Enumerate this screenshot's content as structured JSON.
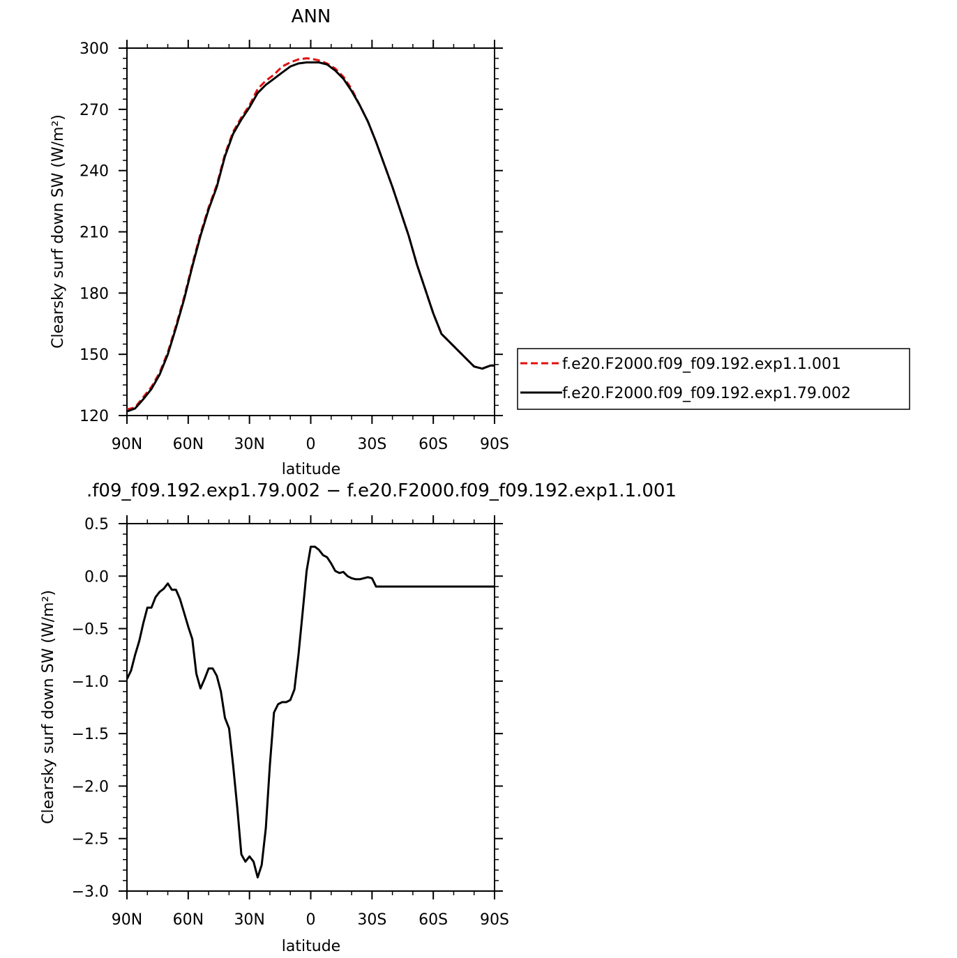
{
  "chart_data": [
    {
      "type": "line",
      "title": "ANN",
      "xlabel": "latitude",
      "ylabel": "Clearsky surf down SW (W/m²)",
      "xlim": [
        90,
        -90
      ],
      "ylim": [
        120,
        300
      ],
      "x_ticks": [
        90,
        60,
        30,
        0,
        -30,
        -60,
        -90
      ],
      "x_tick_labels": [
        "90N",
        "60N",
        "30N",
        "0",
        "30S",
        "60S",
        "90S"
      ],
      "y_ticks": [
        120,
        150,
        180,
        210,
        240,
        270,
        300
      ],
      "y_tick_labels": [
        "120",
        "150",
        "180",
        "210",
        "240",
        "270",
        "300"
      ],
      "legend_position": "right",
      "grid": false,
      "series": [
        {
          "name": "f.e20.F2000.f09_f09.192.exp1.1.001",
          "color": "#e01010",
          "dash": "dashed",
          "x": [
            90,
            86,
            82,
            78,
            74,
            70,
            66,
            62,
            58,
            54,
            50,
            46,
            42,
            38,
            34,
            30,
            26,
            22,
            18,
            14,
            10,
            6,
            2,
            0,
            -4,
            -8,
            -12,
            -16,
            -20,
            -24,
            -28,
            -32,
            -36,
            -40,
            -44,
            -48,
            -52,
            -56,
            -60,
            -64,
            -68,
            -72,
            -76,
            -80,
            -84,
            -88,
            -90
          ],
          "y": [
            123,
            124,
            129,
            134,
            141,
            151,
            164,
            178,
            194,
            209,
            222,
            233,
            248,
            259,
            266,
            272,
            280,
            284,
            287,
            291,
            293,
            294.5,
            295,
            294.8,
            294,
            292.5,
            290,
            286,
            280,
            272,
            264,
            254,
            243,
            232,
            220,
            208,
            194,
            182,
            170,
            160,
            156,
            152,
            148,
            144,
            143,
            144.5,
            144.5
          ]
        },
        {
          "name": "f.e20.F2000.f09_f09.192.exp1.79.002",
          "color": "#000000",
          "dash": "solid",
          "x": [
            90,
            86,
            82,
            78,
            74,
            70,
            66,
            62,
            58,
            54,
            50,
            46,
            42,
            38,
            34,
            30,
            26,
            22,
            18,
            14,
            10,
            6,
            2,
            0,
            -4,
            -8,
            -12,
            -16,
            -20,
            -24,
            -28,
            -32,
            -36,
            -40,
            -44,
            -48,
            -52,
            -56,
            -60,
            -64,
            -68,
            -72,
            -76,
            -80,
            -84,
            -88,
            -90
          ],
          "y": [
            122,
            123.5,
            128,
            133,
            140,
            150,
            163,
            177,
            193,
            208,
            221,
            232,
            247,
            258,
            265,
            271,
            278,
            282,
            285,
            288,
            291,
            292.5,
            293,
            293,
            293,
            292,
            289,
            285,
            279,
            272,
            264,
            254,
            243,
            232,
            220,
            208,
            194,
            182,
            170,
            160,
            156,
            152,
            148,
            144,
            143,
            144.5,
            144.5
          ]
        }
      ]
    },
    {
      "type": "line",
      "title": ".f09_f09.192.exp1.79.002 − f.e20.F2000.f09_f09.192.exp1.1.001",
      "xlabel": "latitude",
      "ylabel": "Clearsky surf down SW (W/m²)",
      "xlim": [
        90,
        -90
      ],
      "ylim": [
        -3.0,
        0.5
      ],
      "x_ticks": [
        90,
        60,
        30,
        0,
        -30,
        -60,
        -90
      ],
      "x_tick_labels": [
        "90N",
        "60N",
        "30N",
        "0",
        "30S",
        "60S",
        "90S"
      ],
      "y_ticks": [
        0.5,
        0.0,
        -0.5,
        -1.0,
        -1.5,
        -2.0,
        -2.5,
        -3.0
      ],
      "y_tick_labels": [
        "0.5",
        "0.0",
        "−0.5",
        "−1.0",
        "−1.5",
        "−2.0",
        "−2.5",
        "−3.0"
      ],
      "grid": false,
      "series": [
        {
          "color": "#000000",
          "dash": "solid",
          "x": [
            90,
            88,
            86,
            84,
            82,
            80,
            78,
            76,
            74,
            72,
            70,
            68,
            66,
            64,
            62,
            60,
            58,
            56,
            54,
            52,
            50,
            48,
            46,
            44,
            42,
            40,
            38,
            36,
            34,
            32,
            30,
            28,
            26,
            24,
            22,
            20,
            18,
            16,
            14,
            12,
            10,
            8,
            6,
            4,
            2,
            0,
            -2,
            -4,
            -6,
            -8,
            -10,
            -12,
            -14,
            -16,
            -18,
            -20,
            -22,
            -24,
            -26,
            -28,
            -30,
            -32,
            -34,
            -36,
            -38,
            -40,
            -42,
            -44,
            -46,
            -48,
            -50,
            -52,
            -54,
            -56,
            -58,
            -60,
            -62,
            -64,
            -66,
            -68,
            -70,
            -72,
            -74,
            -76,
            -78,
            -80,
            -82,
            -84,
            -86,
            -88,
            -90
          ],
          "y": [
            -0.98,
            -0.9,
            -0.75,
            -0.62,
            -0.45,
            -0.3,
            -0.3,
            -0.2,
            -0.15,
            -0.12,
            -0.07,
            -0.13,
            -0.13,
            -0.22,
            -0.35,
            -0.48,
            -0.6,
            -0.93,
            -1.07,
            -0.98,
            -0.88,
            -0.88,
            -0.95,
            -1.1,
            -1.35,
            -1.45,
            -1.8,
            -2.2,
            -2.65,
            -2.72,
            -2.67,
            -2.72,
            -2.87,
            -2.75,
            -2.4,
            -1.8,
            -1.3,
            -1.22,
            -1.2,
            -1.2,
            -1.18,
            -1.08,
            -0.75,
            -0.35,
            0.05,
            0.28,
            0.28,
            0.25,
            0.2,
            0.18,
            0.12,
            0.05,
            0.03,
            0.04,
            0.0,
            -0.02,
            -0.03,
            -0.03,
            -0.02,
            -0.01,
            -0.02,
            -0.1,
            -0.1,
            -0.1,
            -0.1,
            -0.1,
            -0.1,
            -0.1,
            -0.1,
            -0.1,
            -0.1,
            -0.1,
            -0.1,
            -0.1,
            -0.1,
            -0.1,
            -0.1,
            -0.1,
            -0.1,
            -0.1,
            -0.1,
            -0.1,
            -0.1,
            -0.1,
            -0.1,
            -0.1,
            -0.1,
            -0.1,
            -0.1,
            -0.1,
            -0.1
          ]
        }
      ]
    }
  ]
}
